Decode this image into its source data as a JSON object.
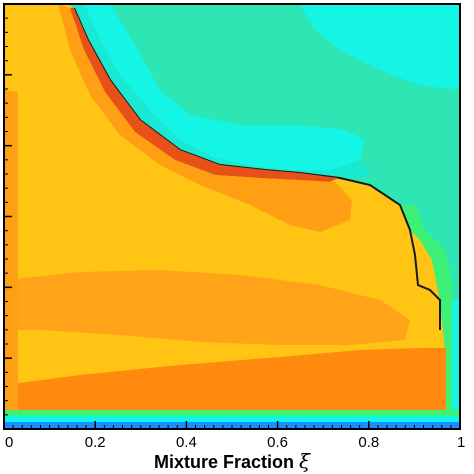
{
  "chart_data": {
    "type": "heatmap",
    "title": "",
    "xlabel": "Mixture Fraction",
    "xlabel_symbol": "ξ",
    "ylabel": "",
    "xlim": [
      0,
      1
    ],
    "xticks": [
      0,
      0.2,
      0.4,
      0.6,
      0.8,
      1
    ],
    "xtick_labels": [
      "0",
      "0.2",
      "0.4",
      "0.6",
      "0.8",
      "1"
    ],
    "grid": false,
    "legend": "none",
    "colormap": "rainbow (blue → cyan → green → yellow → orange → red)",
    "contour_regions": [
      {
        "name": "bulk-region",
        "color": "#FFC414",
        "level": "yellow-orange"
      },
      {
        "name": "orange-band-under-front",
        "color": "#FF9F14",
        "level": "orange"
      },
      {
        "name": "lower-orange-band",
        "color": "#FFA418",
        "level": "orange"
      },
      {
        "name": "dark-orange-band",
        "color": "#FF8A0E",
        "level": "dark orange"
      },
      {
        "name": "upper-right-plateau",
        "color": "#2EE6B4",
        "level": "cyan-green"
      },
      {
        "name": "cyan-lobe",
        "color": "#14F5E6",
        "level": "cyan"
      },
      {
        "name": "bottom-strip",
        "color": "#1E8CFF",
        "level": "blue"
      }
    ],
    "colors": {
      "bulk": "#FFC414",
      "orange": "#FF9F14",
      "dark_orange": "#FF8A0E",
      "red_front": "#E8501A",
      "cyan": "#14F5E6",
      "green_cyan": "#2EE6B4",
      "green": "#3CF078",
      "blue": "#1E8CFF"
    }
  }
}
